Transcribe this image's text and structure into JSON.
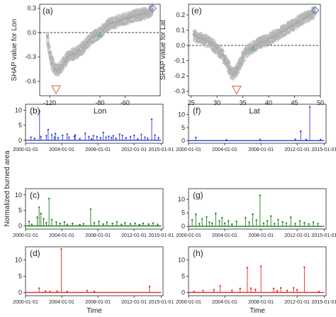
{
  "chart_data": [
    {
      "panel": "(a)",
      "type": "scatter",
      "xlabel": "Lon",
      "ylabel": "SHAP value for Lon",
      "xlim": [
        -128,
        -32
      ],
      "ylim": [
        -0.78,
        0.35
      ],
      "xticks": [
        -120,
        -80,
        -60
      ],
      "yticks": [
        -0.6,
        -0.3,
        0.0,
        0.3
      ],
      "x": [
        -122,
        -120,
        -118,
        -116,
        -114,
        -112,
        -110,
        -108,
        -106,
        -104,
        -102,
        -100,
        -98,
        -96,
        -94,
        -92,
        -90,
        -88,
        -86,
        -84,
        -82,
        -80,
        -78,
        -76,
        -74,
        -72,
        -70,
        -68,
        -66,
        -64,
        -62,
        -60,
        -58,
        -56,
        -54,
        -52,
        -50,
        -48,
        -46,
        -44,
        -42,
        -40,
        -38
      ],
      "y": [
        -0.05,
        -0.25,
        -0.38,
        -0.45,
        -0.47,
        -0.44,
        -0.4,
        -0.35,
        -0.31,
        -0.28,
        -0.27,
        -0.26,
        -0.24,
        -0.22,
        -0.19,
        -0.16,
        -0.12,
        -0.09,
        -0.06,
        -0.04,
        -0.02,
        0.0,
        0.03,
        0.06,
        0.09,
        0.11,
        0.12,
        0.13,
        0.14,
        0.15,
        0.16,
        0.17,
        0.18,
        0.19,
        0.2,
        0.21,
        0.22,
        0.22,
        0.23,
        0.24,
        0.25,
        0.27,
        0.29
      ],
      "markers": [
        {
          "shape": "triangle-down",
          "x": -115,
          "y": -0.7,
          "color": "#e05a3c"
        },
        {
          "shape": "diamond",
          "x": -38,
          "y": 0.3,
          "color": "#5a6fd6"
        },
        {
          "shape": "triangle-up",
          "x": -80,
          "y": -0.03,
          "color": "#4caf50"
        }
      ]
    },
    {
      "panel": "(e)",
      "type": "scatter",
      "xlabel": "Lat",
      "ylabel": "SHAP value for Lat",
      "xlim": [
        24.5,
        50
      ],
      "ylim": [
        -0.33,
        0.27
      ],
      "xticks": [
        25,
        30,
        35,
        40,
        45,
        50
      ],
      "yticks": [
        -0.3,
        -0.2,
        -0.1,
        0.0,
        0.1,
        0.2
      ],
      "x": [
        25.5,
        26,
        26.5,
        27,
        27.5,
        28,
        28.5,
        29,
        29.5,
        30,
        30.5,
        31,
        31.5,
        32,
        32.5,
        33,
        33.5,
        34,
        34.5,
        35,
        35.5,
        36,
        36.5,
        37,
        37.5,
        38,
        38.5,
        39,
        39.5,
        40,
        40.5,
        41,
        41.5,
        42,
        42.5,
        43,
        43.5,
        44,
        44.5,
        45,
        45.5,
        46,
        46.5,
        47,
        47.5,
        48,
        48.5,
        49
      ],
      "y": [
        0.07,
        0.06,
        0.05,
        0.045,
        0.04,
        0.03,
        0.02,
        0.01,
        -0.005,
        -0.02,
        -0.04,
        -0.06,
        -0.09,
        -0.12,
        -0.16,
        -0.19,
        -0.18,
        -0.15,
        -0.12,
        -0.08,
        -0.05,
        -0.03,
        -0.02,
        -0.01,
        0.0,
        0.01,
        0.02,
        0.025,
        0.03,
        0.04,
        0.05,
        0.06,
        0.07,
        0.08,
        0.09,
        0.1,
        0.11,
        0.12,
        0.13,
        0.14,
        0.15,
        0.16,
        0.17,
        0.18,
        0.19,
        0.2,
        0.21,
        0.22
      ],
      "markers": [
        {
          "shape": "triangle-down",
          "x": 33.8,
          "y": -0.29,
          "color": "#e05a3c"
        },
        {
          "shape": "diamond",
          "x": 49,
          "y": 0.23,
          "color": "#5a6fd6"
        },
        {
          "shape": "triangle-up",
          "x": 37,
          "y": -0.02,
          "color": "#4caf50"
        }
      ]
    },
    {
      "panel": "(b)",
      "type": "line",
      "color": "#2f3fd6",
      "xlabel": "",
      "ylabel": "",
      "xlim": [
        0,
        15.2
      ],
      "ylim": [
        -1,
        12
      ],
      "xticks": [
        "2000-01-01",
        "2004-01-01",
        "2008-01-01",
        "2012-01-01",
        "2015-01-01"
      ],
      "yticks": [
        0,
        5,
        10
      ],
      "x": [
        0.6,
        1.0,
        1.55,
        1.7,
        2.3,
        2.5,
        2.9,
        3.2,
        3.3,
        3.6,
        4.1,
        4.6,
        4.8,
        5.4,
        5.5,
        6.0,
        6.6,
        7.0,
        7.3,
        7.5,
        7.9,
        8.3,
        8.6,
        8.9,
        9.2,
        9.5,
        9.7,
        10.0,
        10.4,
        10.7,
        11.1,
        11.6,
        12.0,
        12.4,
        12.8,
        13.2,
        13.5,
        13.95,
        14.3,
        14.7
      ],
      "y": [
        1.0,
        0.6,
        9.8,
        1.2,
        1.5,
        3.5,
        1.8,
        1.0,
        2.2,
        0.8,
        1.6,
        2.0,
        1.0,
        1.3,
        1.7,
        0.5,
        2.3,
        1.2,
        0.4,
        1.5,
        1.2,
        0.8,
        2.6,
        1.0,
        1.3,
        0.9,
        1.5,
        0.6,
        2.0,
        1.6,
        0.8,
        1.2,
        1.6,
        0.4,
        1.9,
        1.0,
        0.6,
        7.0,
        1.7,
        0.8
      ]
    },
    {
      "panel": "(f)",
      "type": "line",
      "color": "#2f3fd6",
      "xlabel": "",
      "ylabel": "",
      "xlim": [
        0,
        15.2
      ],
      "ylim": [
        -1,
        14
      ],
      "xticks": [
        "2000-01-01",
        "2004-01-01",
        "2008-01-01",
        "2012-01-01",
        "2015-01-01"
      ],
      "yticks": [
        0,
        5,
        10
      ],
      "x": [
        0.8,
        4.2,
        7.9,
        11.8,
        12.4,
        13.0,
        13.4,
        14.6
      ],
      "y": [
        1.2,
        0.3,
        0.4,
        0.5,
        3.6,
        0.4,
        13.0,
        0.4
      ]
    },
    {
      "panel": "(c)",
      "type": "line",
      "color": "#1e7d1e",
      "xlabel": "",
      "ylabel": "",
      "xlim": [
        0,
        15.2
      ],
      "ylim": [
        -1,
        12
      ],
      "xticks": [
        "2000-01-01",
        "2004-01-01",
        "2008-01-01",
        "2012-01-01",
        "2015-01-01"
      ],
      "yticks": [
        0,
        5,
        10
      ],
      "x": [
        0.4,
        0.7,
        1.3,
        1.5,
        1.7,
        2.0,
        2.3,
        2.6,
        2.9,
        3.4,
        3.8,
        4.3,
        4.6,
        5.2,
        6.0,
        6.4,
        7.2,
        7.6,
        8.1,
        8.6,
        9.0,
        9.6,
        10.1,
        10.6,
        11.0,
        11.6,
        12.1,
        12.6,
        13.0,
        13.6,
        14.1,
        14.6
      ],
      "y": [
        1.5,
        0.5,
        2.8,
        6.0,
        4.0,
        2.3,
        1.0,
        8.8,
        2.0,
        1.2,
        0.8,
        1.3,
        0.5,
        0.8,
        0.4,
        0.7,
        5.4,
        1.0,
        1.5,
        0.6,
        1.2,
        0.8,
        1.3,
        0.5,
        1.0,
        0.7,
        0.9,
        0.4,
        0.8,
        0.6,
        0.9,
        0.5
      ]
    },
    {
      "panel": "(g)",
      "type": "line",
      "color": "#1e7d1e",
      "xlabel": "",
      "ylabel": "",
      "xlim": [
        0,
        15.2
      ],
      "ylim": [
        -1,
        14
      ],
      "xticks": [
        "2000-01-01",
        "2004-01-01",
        "2008-01-01",
        "2012-01-01",
        "2015-01-01"
      ],
      "yticks": [
        0,
        5,
        10
      ],
      "x": [
        0.4,
        0.8,
        1.2,
        1.5,
        2.0,
        2.3,
        2.6,
        3.0,
        3.4,
        3.7,
        4.0,
        4.4,
        4.8,
        5.3,
        6.3,
        6.7,
        7.1,
        7.5,
        7.9,
        8.3,
        8.7,
        9.1,
        9.5,
        9.9,
        10.4,
        10.8,
        11.3,
        11.8,
        12.3,
        12.8,
        13.3,
        13.8,
        14.3
      ],
      "y": [
        2.4,
        4.5,
        1.0,
        2.8,
        3.5,
        1.5,
        1.2,
        4.8,
        2.0,
        3.2,
        1.2,
        2.0,
        0.8,
        1.8,
        3.2,
        1.5,
        4.5,
        2.3,
        11.5,
        1.2,
        2.0,
        3.8,
        1.0,
        2.5,
        1.6,
        1.2,
        3.4,
        1.0,
        2.0,
        1.3,
        0.9,
        1.5,
        1.0
      ]
    },
    {
      "panel": "(d)",
      "type": "line",
      "color": "#e8271e",
      "xlabel": "Time",
      "ylabel": "",
      "xlim": [
        0,
        15.2
      ],
      "ylim": [
        -1,
        14
      ],
      "xticks": [
        "2000-01-01",
        "2004-01-01",
        "2008-01-01",
        "2012-01-01",
        "2015-01-01"
      ],
      "yticks": [
        0,
        5,
        10
      ],
      "x": [
        1.5,
        2.2,
        2.7,
        3.5,
        3.95,
        4.6,
        6.8,
        7.6,
        13.7
      ],
      "y": [
        1.3,
        0.4,
        0.3,
        0.4,
        13.3,
        0.3,
        0.6,
        0.3,
        1.8
      ]
    },
    {
      "panel": "(h)",
      "type": "line",
      "color": "#e8271e",
      "xlabel": "Time",
      "ylabel": "",
      "xlim": [
        0,
        15.2
      ],
      "ylim": [
        -1,
        14
      ],
      "xticks": [
        "2000-01-01",
        "2004-01-01",
        "2008-01-01",
        "2012-01-01",
        "2015-01-01"
      ],
      "yticks": [
        0,
        5,
        10
      ],
      "x": [
        0.6,
        1.6,
        2.8,
        3.5,
        4.8,
        5.7,
        6.5,
        6.9,
        7.4,
        8.0,
        9.4,
        9.8,
        10.2,
        10.9,
        11.6,
        12.0,
        12.8,
        14.4
      ],
      "y": [
        0.3,
        0.6,
        0.8,
        2.0,
        0.6,
        1.2,
        7.6,
        1.3,
        0.9,
        8.0,
        1.2,
        0.5,
        1.4,
        0.6,
        1.4,
        0.8,
        7.7,
        0.3
      ]
    }
  ],
  "shared_ylabel": "Normalized burned area"
}
